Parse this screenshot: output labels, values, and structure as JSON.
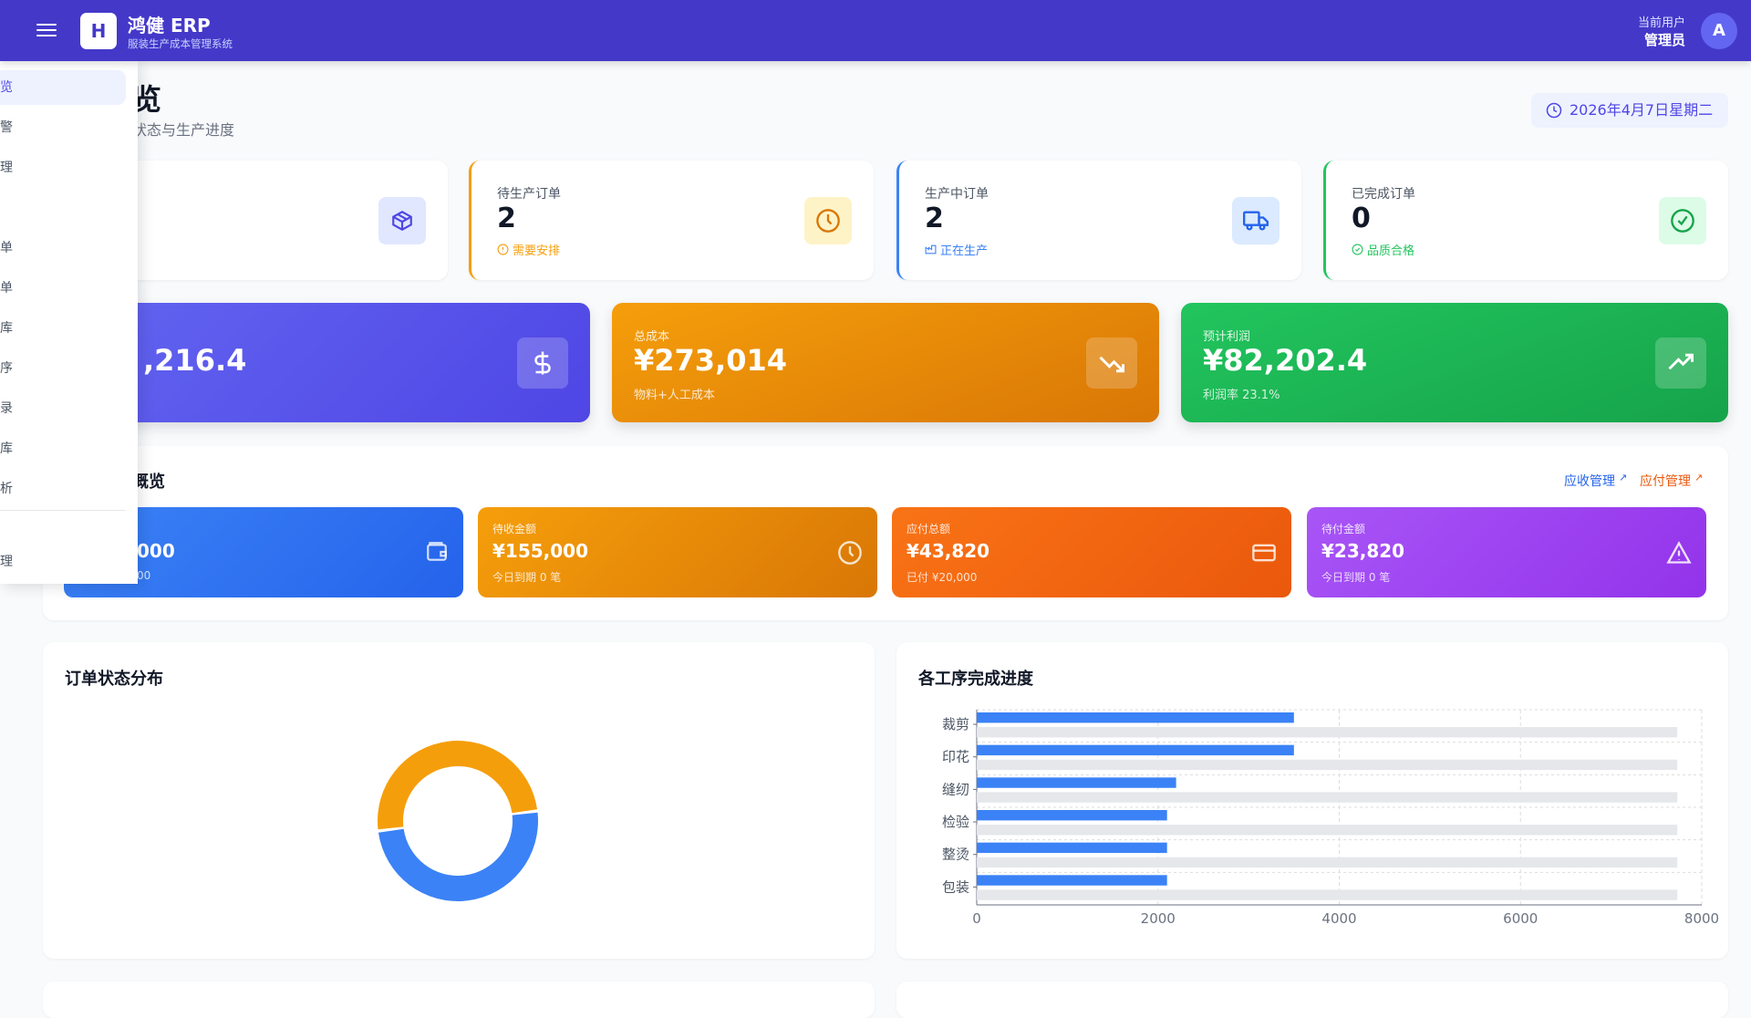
{
  "header": {
    "logo_letter": "H",
    "app_name": "鸿健 ERP",
    "app_subtitle": "服装生产成本管理系统",
    "user_label": "当前用户",
    "user_name": "管理员",
    "avatar_letter": "A"
  },
  "sidebar": {
    "items": [
      {
        "label": "览",
        "active": true
      },
      {
        "label": "警"
      },
      {
        "label": "理"
      },
      {
        "label": ""
      },
      {
        "label": "单"
      },
      {
        "label": "单"
      },
      {
        "label": "库"
      },
      {
        "label": "序"
      },
      {
        "label": "录"
      },
      {
        "label": "库"
      },
      {
        "label": "析"
      },
      {
        "label": ""
      },
      {
        "label": "理"
      }
    ]
  },
  "page": {
    "title": "览",
    "subtitle": "状态与生产进度",
    "date": "2026年4月7日星期二"
  },
  "stats": [
    {
      "label": "",
      "value": "",
      "sub": "",
      "icon": "box-icon",
      "color": "#4f46e5"
    },
    {
      "label": "待生产订单",
      "value": "2",
      "sub": "需要安排",
      "icon": "clock-icon",
      "color": "#f59e0b"
    },
    {
      "label": "生产中订单",
      "value": "2",
      "sub": "正在生产",
      "icon": "truck-icon",
      "color": "#3b82f6"
    },
    {
      "label": "已完成订单",
      "value": "0",
      "sub": "品质合格",
      "icon": "check-circle-icon",
      "color": "#22c55e"
    }
  ],
  "summary": [
    {
      "label": "",
      "value": ",216.4",
      "sub": "",
      "icon": "dollar-icon"
    },
    {
      "label": "总成本",
      "value": "¥273,014",
      "sub": "物料+人工成本",
      "icon": "trending-down-icon"
    },
    {
      "label": "预计利润",
      "value": "¥82,202.4",
      "sub": "利润率 23.1%",
      "icon": "trending-up-icon"
    }
  ],
  "finance": {
    "title": "概览",
    "link_receivable": "应收管理",
    "link_payable": "应付管理",
    "cards": [
      {
        "label": "",
        "value": "000",
        "sub": "00",
        "icon": "wallet-icon"
      },
      {
        "label": "待收金额",
        "value": "¥155,000",
        "sub": "今日到期 0 笔",
        "icon": "clock-icon"
      },
      {
        "label": "应付总额",
        "value": "¥43,820",
        "sub": "已付 ¥20,000",
        "icon": "credit-card-icon"
      },
      {
        "label": "待付金额",
        "value": "¥23,820",
        "sub": "今日到期 0 笔",
        "icon": "alert-triangle-icon"
      }
    ]
  },
  "charts": {
    "donut_title": "订单状态分布",
    "bar_title": "各工序完成进度"
  },
  "chart_data": [
    {
      "type": "pie",
      "title": "订单状态分布",
      "donut": true,
      "values": [
        2,
        2
      ],
      "colors": [
        "#f59e0b",
        "#3b82f6"
      ]
    },
    {
      "type": "bar",
      "orientation": "horizontal",
      "title": "各工序完成进度",
      "categories": [
        "裁剪",
        "印花",
        "缝纫",
        "检验",
        "整烫",
        "包装"
      ],
      "series": [
        {
          "values": [
            3500,
            3500,
            2200,
            2100,
            2100,
            2100
          ],
          "color": "#3b82f6"
        },
        {
          "values": [
            7730,
            7730,
            7730,
            7730,
            7730,
            7730
          ],
          "color": "#e5e7eb"
        }
      ],
      "xlim": [
        0,
        8000
      ],
      "xticks": [
        "0",
        "2000",
        "4000",
        "6000",
        "8000"
      ],
      "grid": true
    }
  ]
}
